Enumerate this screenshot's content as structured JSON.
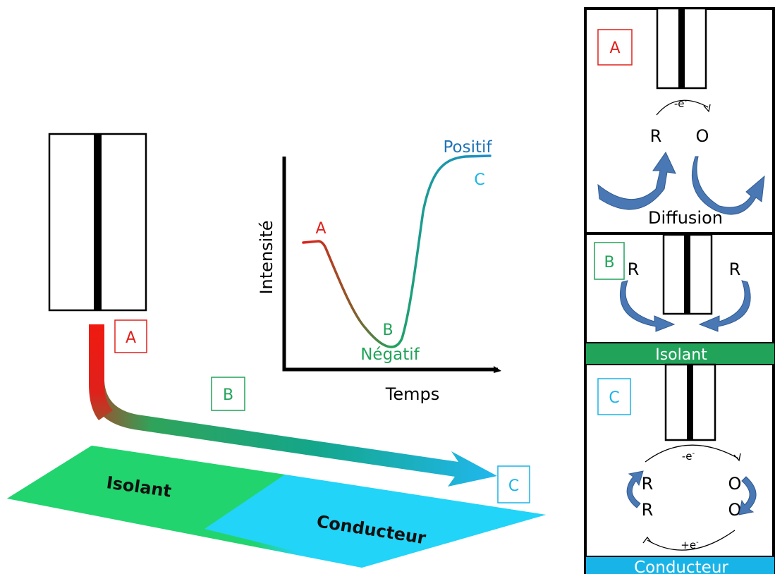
{
  "colors": {
    "red": "#e0201b",
    "green": "#21a35a",
    "cyan": "#18b4e8",
    "blue": "#1f73b7",
    "isolant_fill": "#22d46e",
    "conducteur_fill": "#22d4f7",
    "arrow_blue": "#4a78b4"
  },
  "left": {
    "path_labels": {
      "a": "A",
      "b": "B",
      "c": "C"
    },
    "surface": {
      "isolant": "Isolant",
      "conducteur": "Conducteur"
    }
  },
  "graph": {
    "ylabel": "Intensité",
    "xlabel": "Temps",
    "point_a": "A",
    "point_b": "B",
    "point_c": "C",
    "negative": "Négatif",
    "positive": "Positif"
  },
  "right": {
    "a": {
      "box": "A",
      "electron": "-e",
      "sup": "-",
      "r": "R",
      "o": "O",
      "diffusion": "Diffusion"
    },
    "b": {
      "box": "B",
      "r_left": "R",
      "r_right": "R",
      "band": "Isolant"
    },
    "c": {
      "box": "C",
      "electron_top": "-e",
      "sup_top": "-",
      "r1": "R",
      "r2": "R",
      "o1": "O",
      "o2": "O",
      "electron_bottom": "+e",
      "sup_bottom": "-",
      "band": "Conducteur"
    }
  }
}
